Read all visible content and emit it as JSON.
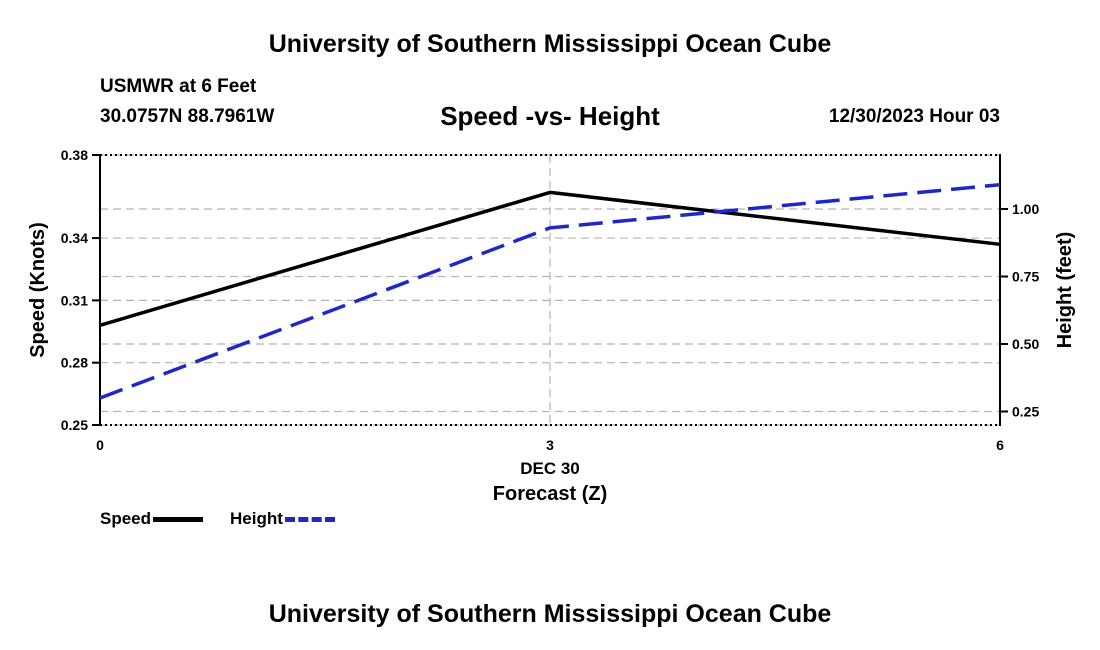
{
  "header": {
    "title": "University of Southern Mississippi Ocean Cube",
    "station": "USMWR at 6 Feet",
    "coords": "30.0757N  88.7961W",
    "chart_title": "Speed -vs- Height",
    "datestamp": "12/30/2023 Hour 03"
  },
  "footer": {
    "title": "University of Southern Mississippi Ocean Cube"
  },
  "legend": {
    "speed_label": "Speed",
    "height_label": "Height"
  },
  "colors": {
    "speed": "#000000",
    "height": "#1e28c8",
    "grid": "#b4b4b4"
  },
  "chart_data": {
    "type": "line",
    "title": "Speed -vs- Height",
    "xlabel": "Forecast (Z)",
    "x_tick_labels": [
      "0",
      "3",
      "6"
    ],
    "x_date_label": "DEC 30",
    "x": [
      0,
      3,
      6
    ],
    "xlim": [
      0,
      6
    ],
    "grid": true,
    "legend_position": "bottom-left",
    "left_axis": {
      "label": "Speed (Knots)",
      "ylim": [
        0.25,
        0.38
      ],
      "ticks": [
        0.25,
        0.28,
        0.31,
        0.34,
        0.38
      ],
      "tick_labels": [
        "0.25",
        "0.28",
        "0.31",
        "0.34",
        "0.38"
      ]
    },
    "right_axis": {
      "label": "Height (feet)",
      "ylim": [
        0.2,
        1.2
      ],
      "ticks": [
        0.25,
        0.5,
        0.75,
        1.0
      ],
      "tick_labels": [
        "0.25",
        "0.50",
        "0.75",
        "1.00"
      ]
    },
    "series": [
      {
        "name": "Speed",
        "axis": "left",
        "style": "solid",
        "values": [
          0.298,
          0.362,
          0.337
        ]
      },
      {
        "name": "Height",
        "axis": "right",
        "style": "dashed",
        "values": [
          0.3,
          0.93,
          1.09
        ]
      }
    ]
  }
}
